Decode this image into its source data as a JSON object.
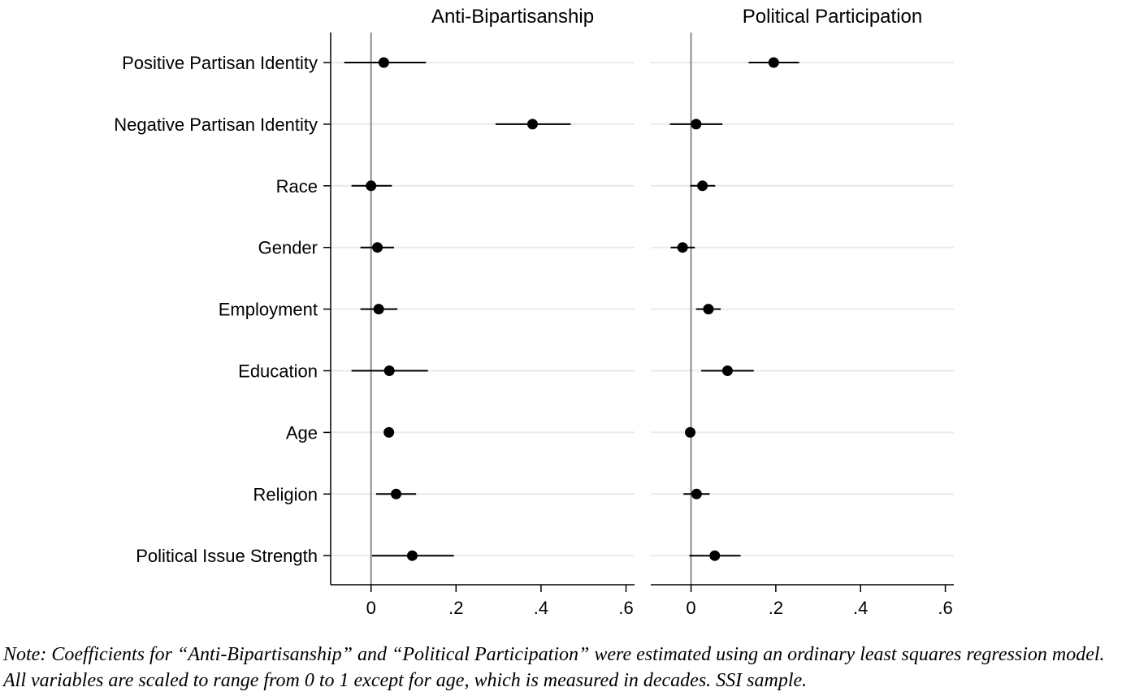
{
  "chart_data": {
    "type": "dot-and-whisker",
    "categories": [
      "Positive Partisan Identity",
      "Negative Partisan Identity",
      "Race",
      "Gender",
      "Employment",
      "Education",
      "Age",
      "Religion",
      "Political Issue Strength"
    ],
    "xlim": [
      -0.095,
      0.62
    ],
    "xticks": [
      0,
      0.2,
      0.4,
      0.6
    ],
    "xtick_labels": [
      "0",
      ".2",
      ".4",
      ".6"
    ],
    "grid": true,
    "reference_line": 0,
    "panels": [
      {
        "title": "Anti-Bipartisanship",
        "estimates": [
          0.03,
          0.38,
          0.0,
          0.015,
          0.018,
          0.043,
          0.042,
          0.059,
          0.097
        ],
        "ci_low": [
          -0.063,
          0.293,
          -0.046,
          -0.025,
          -0.025,
          -0.046,
          0.042,
          0.012,
          0.002
        ],
        "ci_high": [
          0.129,
          0.47,
          0.049,
          0.054,
          0.062,
          0.134,
          0.042,
          0.106,
          0.195
        ]
      },
      {
        "title": "Political Participation",
        "estimates": [
          0.195,
          0.012,
          0.027,
          -0.02,
          0.041,
          0.086,
          -0.002,
          0.013,
          0.056
        ],
        "ci_low": [
          0.136,
          -0.05,
          -0.002,
          -0.048,
          0.012,
          0.024,
          -0.002,
          -0.018,
          -0.004
        ],
        "ci_high": [
          0.255,
          0.074,
          0.057,
          0.009,
          0.07,
          0.148,
          -0.002,
          0.044,
          0.117
        ]
      }
    ]
  },
  "colors": {
    "marker": "#000000",
    "whisker": "#000000",
    "gridline": "#eaeaea",
    "zero_line": "#8c8c8c",
    "axis": "#000000"
  },
  "note": {
    "line1": "Note: Coefficients for “Anti-Bipartisanship” and “Political Participation” were estimated using an ordinary least squares regression model.",
    "line2": "All variables are scaled to range from 0 to 1 except for age, which is measured in decades. SSI sample."
  }
}
